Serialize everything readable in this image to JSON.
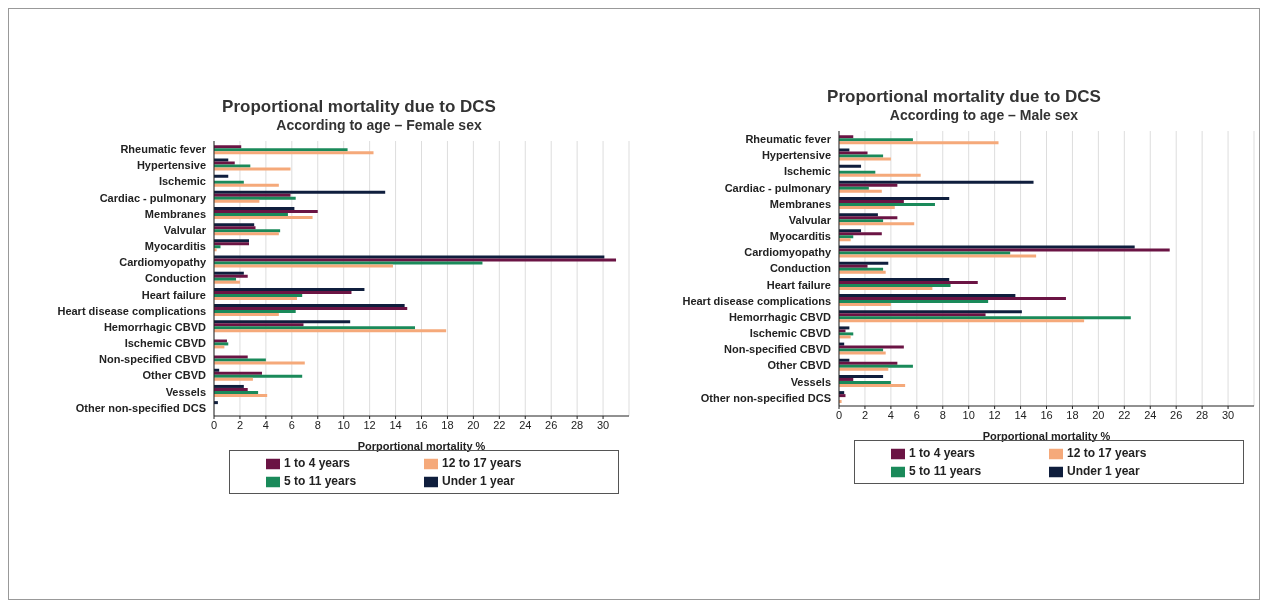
{
  "chart_data": [
    {
      "type": "bar",
      "orientation": "horizontal",
      "title": "Proportional mortality due to DCS",
      "subtitle": "According to age – Female sex",
      "xlabel": "Porportional mortality %",
      "categories": [
        "Rheumatic fever",
        "Hypertensive",
        "Ischemic",
        "Cardiac - pulmonary",
        "Membranes",
        "Valvular",
        "Myocarditis",
        "Cardiomyopathy",
        "Conduction",
        "Heart failure",
        "Heart disease complications",
        "Hemorrhagic CBVD",
        "Ischemic CBVD",
        "Non-specified CBVD",
        "Other CBVD",
        "Vessels",
        "Other non-specified DCS"
      ],
      "series": [
        {
          "name": "Under 1 year",
          "color": "#0f1e3d",
          "values": [
            0,
            1.1,
            1.1,
            13.2,
            6.2,
            3.1,
            2.7,
            30.1,
            2.3,
            11.6,
            14.7,
            10.5,
            0,
            0,
            0.4,
            2.3,
            0.3
          ]
        },
        {
          "name": "1 to 4 years",
          "color": "#6b1444",
          "values": [
            2.1,
            1.6,
            0,
            5.9,
            8.0,
            3.2,
            2.7,
            31.0,
            2.6,
            10.6,
            14.9,
            6.9,
            1.0,
            2.6,
            3.7,
            2.6,
            0
          ]
        },
        {
          "name": "5 to 11 years",
          "color": "#1a8a5a",
          "values": [
            10.3,
            2.8,
            2.3,
            6.3,
            5.7,
            5.1,
            0.5,
            20.7,
            1.7,
            6.8,
            6.3,
            15.5,
            1.1,
            4.0,
            6.8,
            3.4,
            0
          ]
        },
        {
          "name": "12 to 17 years",
          "color": "#f5a97a",
          "values": [
            12.3,
            5.9,
            5.0,
            3.5,
            7.6,
            5.0,
            0.2,
            13.8,
            2.0,
            6.4,
            5.0,
            17.9,
            0.8,
            7.0,
            3.0,
            4.1,
            0
          ]
        }
      ],
      "xlim": [
        0,
        32
      ],
      "xticks": [
        0,
        2,
        4,
        6,
        8,
        10,
        12,
        14,
        16,
        18,
        20,
        22,
        24,
        26,
        28,
        30
      ],
      "grid": "x",
      "legend": "bottom"
    },
    {
      "type": "bar",
      "orientation": "horizontal",
      "title": "Proportional mortality due to DCS",
      "subtitle": "According to age – Male sex",
      "xlabel": "Porportional mortality %",
      "categories": [
        "Rheumatic fever",
        "Hypertensive",
        "Ischemic",
        "Cardiac - pulmonary",
        "Membranes",
        "Valvular",
        "Myocarditis",
        "Cardiomyopathy",
        "Conduction",
        "Heart failure",
        "Heart disease complications",
        "Hemorrhagic CBVD",
        "Ischemic CBVD",
        "Non-specified CBVD",
        "Other CBVD",
        "Vessels",
        "Other non-specified DCS"
      ],
      "series": [
        {
          "name": "Under 1 year",
          "color": "#0f1e3d",
          "values": [
            0,
            0.8,
            1.7,
            15.0,
            8.5,
            3.0,
            1.7,
            22.8,
            3.8,
            8.5,
            13.6,
            14.1,
            0.8,
            0.4,
            0.8,
            3.4,
            0.4
          ]
        },
        {
          "name": "1 to 4 years",
          "color": "#6b1444",
          "values": [
            1.1,
            2.2,
            0,
            4.5,
            5.0,
            4.5,
            3.3,
            25.5,
            2.2,
            10.7,
            17.5,
            11.3,
            0.5,
            5.0,
            4.5,
            1.1,
            0.5
          ]
        },
        {
          "name": "5 to 11 years",
          "color": "#1a8a5a",
          "values": [
            5.7,
            3.4,
            2.8,
            2.3,
            7.4,
            3.4,
            1.1,
            13.2,
            3.4,
            8.6,
            11.5,
            22.5,
            1.1,
            3.4,
            5.7,
            4.0,
            0
          ]
        },
        {
          "name": "12 to 17 years",
          "color": "#f5a97a",
          "values": [
            12.3,
            4.0,
            6.3,
            3.3,
            4.3,
            5.8,
            0.9,
            15.2,
            3.6,
            7.2,
            4.0,
            18.9,
            0.9,
            3.6,
            3.8,
            5.1,
            0.2
          ]
        }
      ],
      "xlim": [
        0,
        32
      ],
      "xticks": [
        0,
        2,
        4,
        6,
        8,
        10,
        12,
        14,
        16,
        18,
        20,
        22,
        24,
        26,
        28,
        30
      ],
      "grid": "x",
      "legend": "bottom"
    }
  ]
}
